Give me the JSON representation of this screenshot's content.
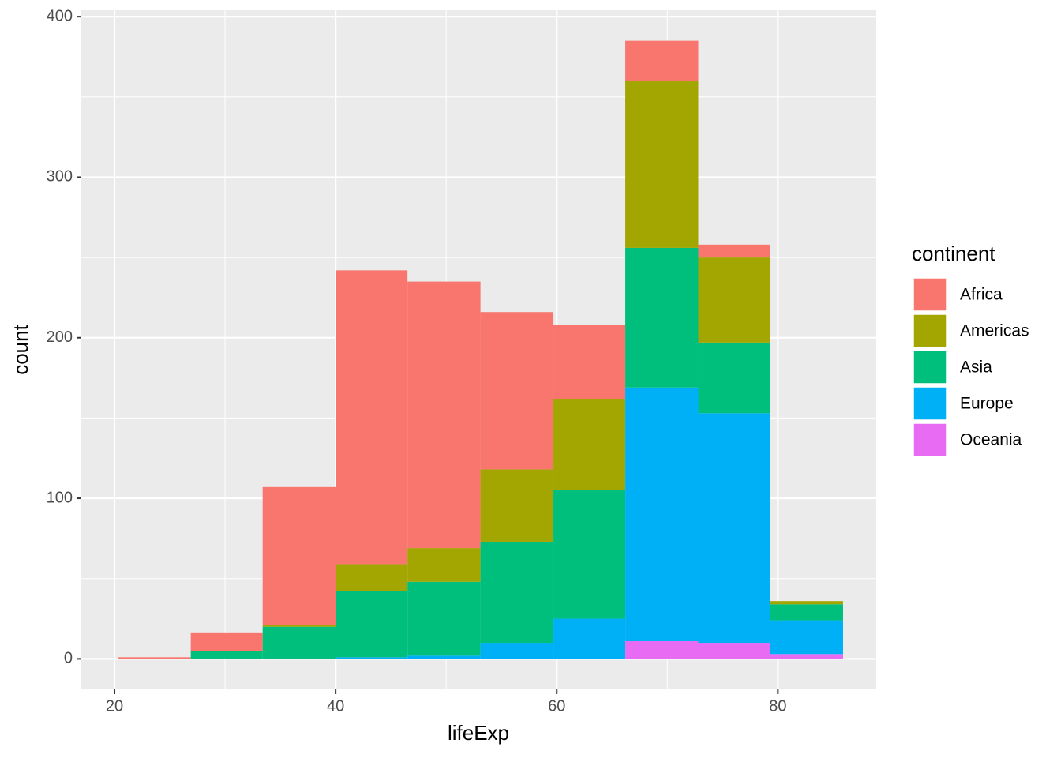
{
  "chart_data": {
    "type": "histogram",
    "x_label": "lifeExp",
    "y_label": "count",
    "legend_title": "continent",
    "bins": [
      20.3,
      26.9,
      33.4,
      40.0,
      46.5,
      53.1,
      59.7,
      66.2,
      72.8,
      79.3,
      85.9
    ],
    "series": [
      {
        "name": "Africa",
        "color": "#F8766D",
        "values": [
          1,
          11,
          86,
          183,
          166,
          98,
          46,
          25,
          8,
          0
        ]
      },
      {
        "name": "Americas",
        "color": "#A3A500",
        "values": [
          0,
          0,
          1,
          17,
          21,
          45,
          57,
          104,
          53,
          2
        ]
      },
      {
        "name": "Asia",
        "color": "#00BF7D",
        "values": [
          0,
          5,
          20,
          41,
          46,
          63,
          80,
          87,
          44,
          10
        ]
      },
      {
        "name": "Europe",
        "color": "#00B0F6",
        "values": [
          0,
          0,
          0,
          1,
          2,
          10,
          25,
          158,
          143,
          21
        ]
      },
      {
        "name": "Oceania",
        "color": "#E76BF3",
        "values": [
          0,
          0,
          0,
          0,
          0,
          0,
          0,
          11,
          10,
          3
        ]
      }
    ],
    "stack_order": "bottom-up-reversed",
    "xlim": [
      17.0,
      88.9
    ],
    "xticks": [
      20,
      40,
      60,
      80
    ],
    "ylim": [
      -19,
      404
    ],
    "yticks": [
      0,
      100,
      200,
      300,
      400
    ],
    "grid": true,
    "legend_position": "right"
  }
}
